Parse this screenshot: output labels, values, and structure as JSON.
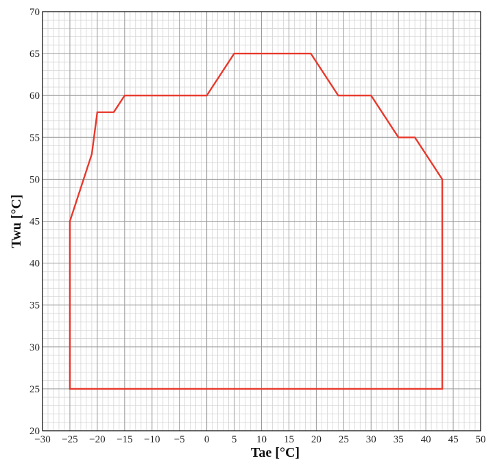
{
  "chart_data": {
    "type": "line",
    "title": "",
    "xlabel": "Tae [°C]",
    "ylabel": "Twu [°C]",
    "xlim": [
      -30,
      50
    ],
    "ylim": [
      20,
      70
    ],
    "x_ticks": [
      -30,
      -25,
      -20,
      -15,
      -10,
      -5,
      0,
      5,
      10,
      15,
      20,
      25,
      30,
      35,
      40,
      45,
      50
    ],
    "y_ticks": [
      20,
      25,
      30,
      35,
      40,
      45,
      50,
      55,
      60,
      65,
      70
    ],
    "grid": true,
    "minor_grid_step": 1,
    "series": [
      {
        "color": "#e8382b",
        "closed": true,
        "x": [
          -25,
          -21,
          -20,
          -17,
          -15,
          0,
          5,
          19,
          24,
          30,
          35,
          38,
          43,
          43,
          -25
        ],
        "y": [
          45,
          53,
          58,
          58,
          60,
          60,
          65,
          65,
          60,
          60,
          55,
          55,
          50,
          25,
          25
        ]
      }
    ],
    "colors": {
      "major_grid": "#9a9a9a",
      "minor_grid": "#d4d4d4",
      "axis": "#000000"
    }
  }
}
